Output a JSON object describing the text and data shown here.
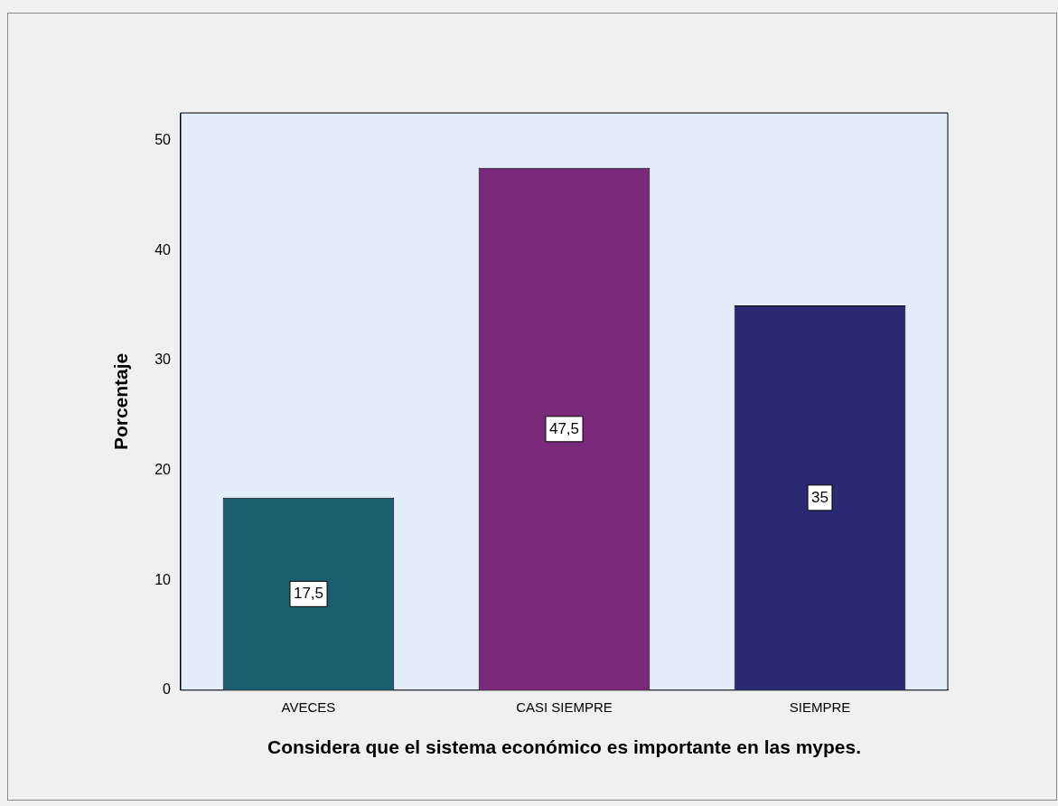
{
  "chart_data": {
    "type": "bar",
    "xlabel": "Considera que el sistema económico es importante en las mypes.",
    "ylabel": "Porcentaje",
    "categories": [
      "AVECES",
      "CASI SIEMPRE",
      "SIEMPRE"
    ],
    "values": [
      17.5,
      47.5,
      35
    ],
    "colors": [
      "#1b5e70",
      "#7b2a7b",
      "#2a2a72"
    ],
    "value_labels": [
      "17,5",
      "47,5",
      "35"
    ],
    "ylim": [
      0,
      52.5
    ],
    "yticks": [
      0,
      10,
      20,
      30,
      40,
      50
    ],
    "grid": false,
    "legend": false
  }
}
